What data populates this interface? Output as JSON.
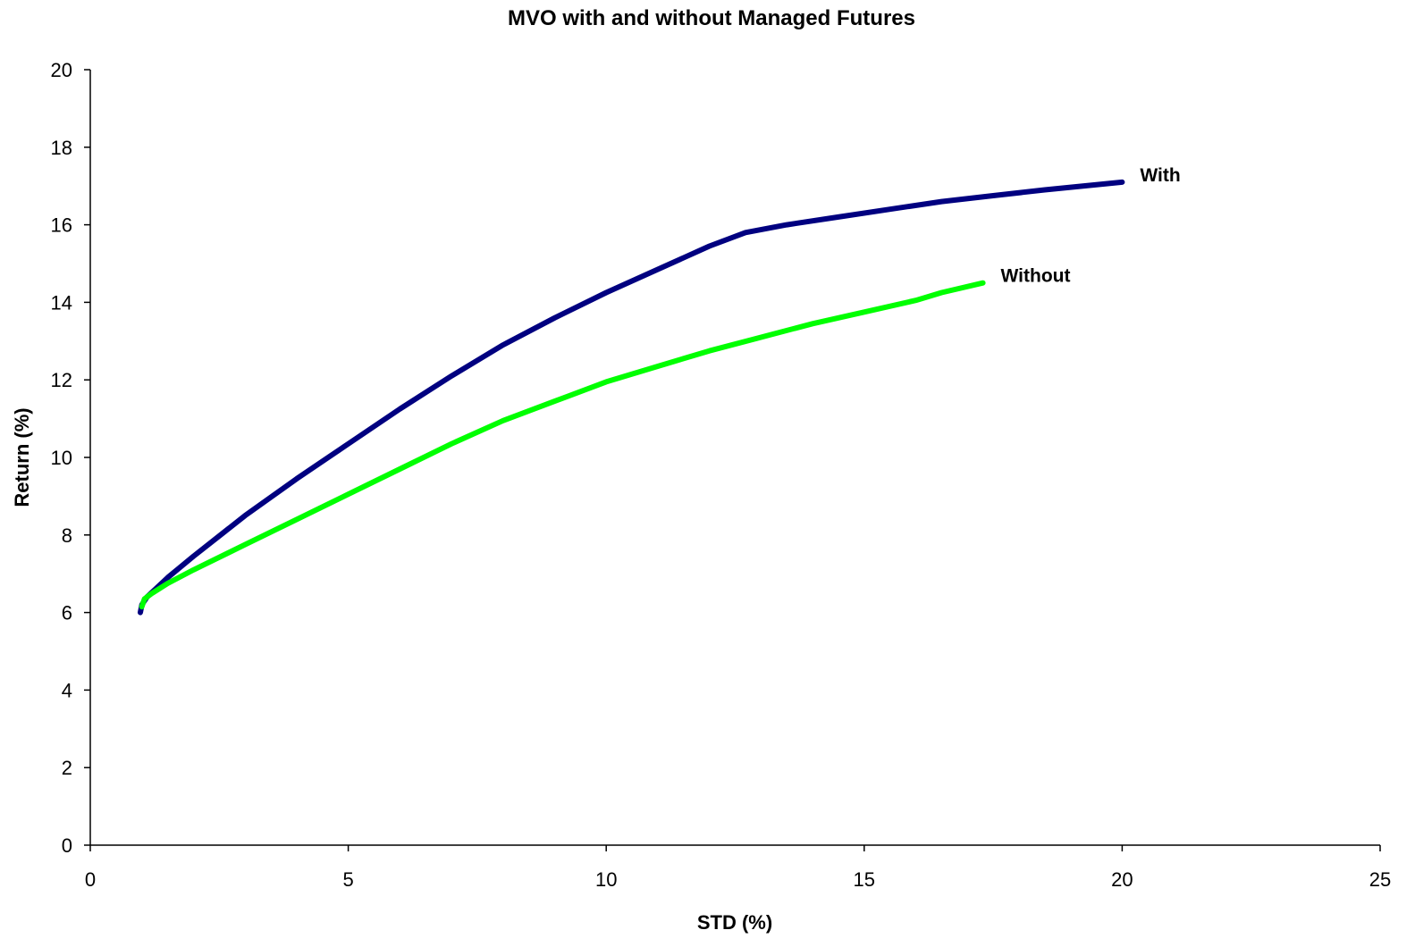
{
  "chart_data": {
    "type": "line",
    "title": "MVO with and without Managed Futures",
    "xlabel": "STD (%)",
    "ylabel": "Return (%)",
    "xlim": [
      0,
      25
    ],
    "ylim": [
      0,
      20
    ],
    "x_ticks": [
      0,
      5,
      10,
      15,
      20,
      25
    ],
    "y_ticks": [
      0,
      2,
      4,
      6,
      8,
      10,
      12,
      14,
      16,
      18,
      20
    ],
    "grid": false,
    "series": [
      {
        "name": "With",
        "color": "#000080",
        "points": [
          [
            0.97,
            6.0
          ],
          [
            1.0,
            6.2
          ],
          [
            1.1,
            6.4
          ],
          [
            1.3,
            6.65
          ],
          [
            1.5,
            6.9
          ],
          [
            2.0,
            7.45
          ],
          [
            3.0,
            8.5
          ],
          [
            4.0,
            9.45
          ],
          [
            5.0,
            10.35
          ],
          [
            6.0,
            11.25
          ],
          [
            7.0,
            12.1
          ],
          [
            8.0,
            12.9
          ],
          [
            9.0,
            13.6
          ],
          [
            10.0,
            14.25
          ],
          [
            11.0,
            14.85
          ],
          [
            12.0,
            15.45
          ],
          [
            12.7,
            15.8
          ],
          [
            13.5,
            16.0
          ],
          [
            14.5,
            16.2
          ],
          [
            15.5,
            16.4
          ],
          [
            16.5,
            16.6
          ],
          [
            17.5,
            16.75
          ],
          [
            18.5,
            16.9
          ],
          [
            20.0,
            17.1
          ]
        ]
      },
      {
        "name": "Without",
        "color": "#00ff00",
        "points": [
          [
            1.0,
            6.15
          ],
          [
            1.05,
            6.35
          ],
          [
            1.2,
            6.5
          ],
          [
            1.5,
            6.75
          ],
          [
            2.0,
            7.1
          ],
          [
            3.0,
            7.75
          ],
          [
            4.0,
            8.4
          ],
          [
            5.0,
            9.05
          ],
          [
            6.0,
            9.7
          ],
          [
            7.0,
            10.35
          ],
          [
            8.0,
            10.95
          ],
          [
            9.0,
            11.45
          ],
          [
            10.0,
            11.95
          ],
          [
            11.0,
            12.35
          ],
          [
            12.0,
            12.75
          ],
          [
            13.0,
            13.1
          ],
          [
            14.0,
            13.45
          ],
          [
            15.0,
            13.75
          ],
          [
            16.0,
            14.05
          ],
          [
            16.5,
            14.25
          ],
          [
            17.3,
            14.5
          ]
        ]
      }
    ]
  }
}
